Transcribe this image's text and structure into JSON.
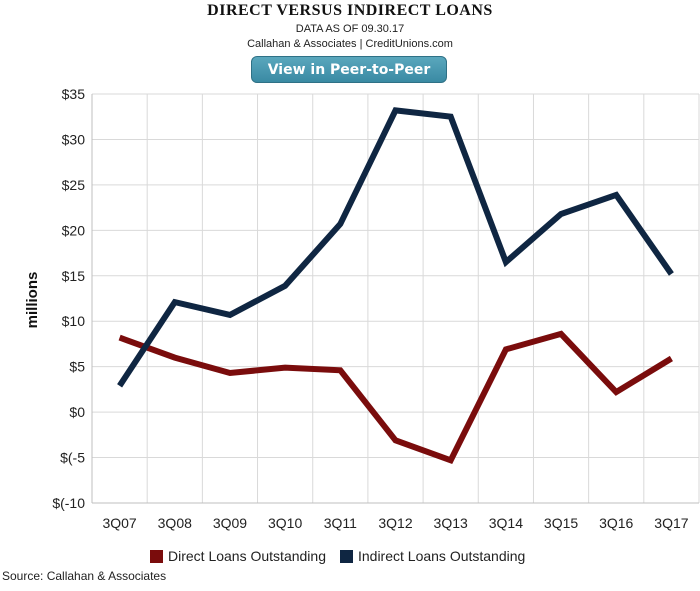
{
  "header": {
    "title": "DIRECT VERSUS INDIRECT LOANS",
    "subtitle": "DATA AS OF 09.30.17",
    "attribution": "Callahan & Associates | CreditUnions.com",
    "button_label": "View in Peer-to-Peer"
  },
  "footer": {
    "source": "Source: Callahan & Associates"
  },
  "chart_data": {
    "type": "line",
    "title": "DIRECT VERSUS INDIRECT LOANS",
    "ylabel": "millions",
    "xlabel": "",
    "categories": [
      "3Q07",
      "3Q08",
      "3Q09",
      "3Q10",
      "3Q11",
      "3Q12",
      "3Q13",
      "3Q14",
      "3Q15",
      "3Q16",
      "3Q17"
    ],
    "ylim": [
      -10,
      35
    ],
    "yticks": [
      35,
      30,
      25,
      20,
      15,
      10,
      5,
      0,
      -5,
      -10
    ],
    "ytick_labels": [
      "$35",
      "$30",
      "$25",
      "$20",
      "$15",
      "$10",
      "$5",
      "$0",
      "$(-5",
      "$(-10"
    ],
    "grid": true,
    "legend_position": "bottom",
    "series": [
      {
        "name": "Direct Loans Outstanding",
        "color": "#7a0c0c",
        "values": [
          8.2,
          6.0,
          4.3,
          4.9,
          4.6,
          -3.1,
          -5.3,
          6.9,
          8.6,
          2.2,
          5.9
        ]
      },
      {
        "name": "Indirect Loans Outstanding",
        "color": "#0f2642",
        "values": [
          2.9,
          12.1,
          10.7,
          13.9,
          20.7,
          33.2,
          32.5,
          16.5,
          21.8,
          23.9,
          15.2
        ]
      }
    ]
  }
}
